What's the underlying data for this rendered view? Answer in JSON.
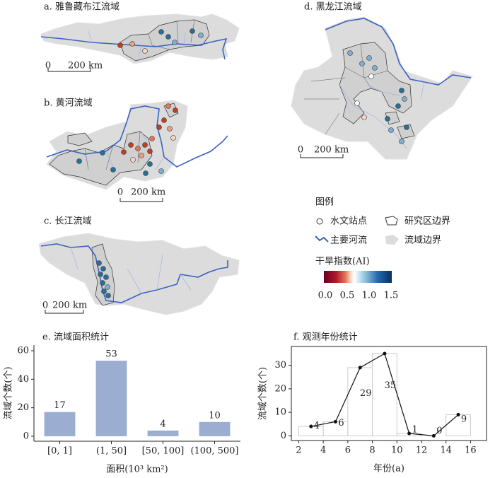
{
  "maps": [
    {
      "title": "a. 雅鲁藏布江流域",
      "scale": [
        "0",
        "200 km"
      ]
    },
    {
      "title": "b. 黄河流域",
      "scale": [
        "0",
        "200 km"
      ]
    },
    {
      "title": "c. 长江流域",
      "scale": [
        "0",
        "200 km"
      ]
    },
    {
      "title": "d. 黑龙江流域",
      "scale": [
        "0",
        "200 km"
      ]
    }
  ],
  "legend": {
    "title": "图例",
    "items": [
      "水文站点",
      "研究区边界",
      "主要河流",
      "流域边界"
    ],
    "colorbar": {
      "title": "干旱指数(AI)",
      "ticks": [
        "0.0",
        "0.5",
        "1.0",
        "1.5"
      ]
    }
  },
  "chart_data": [
    {
      "type": "bar",
      "title": "e. 流域面积统计",
      "x_label": "面积(10³ km²)",
      "y_label": "流域个数(个)",
      "categories": [
        "[0, 1]",
        "(1, 50]",
        "[50, 100]",
        "(100, 500]"
      ],
      "values": [
        17,
        53,
        4,
        10
      ],
      "color": "#9badd0",
      "ylim": [
        -3.5,
        64
      ],
      "yticks": [
        0,
        20,
        40,
        60
      ]
    },
    {
      "type": "histogram",
      "title": "f. 观测年份统计",
      "x_label": "年份(a)",
      "y_label": "流域个数(个)",
      "bins": [
        2,
        4,
        6,
        8,
        10,
        12,
        14,
        16
      ],
      "values": [
        4,
        6,
        29,
        35,
        1,
        0,
        9
      ],
      "x": [
        3,
        5,
        7,
        9,
        11,
        13,
        15
      ],
      "bar_color": "#cccccc",
      "line_color": "#111111",
      "xlim": [
        1.4,
        17.3
      ],
      "ylim": [
        -2,
        38
      ],
      "xticks": [
        2,
        4,
        6,
        8,
        10,
        12,
        14,
        16
      ],
      "yticks": [
        0,
        10,
        20,
        30
      ]
    }
  ]
}
